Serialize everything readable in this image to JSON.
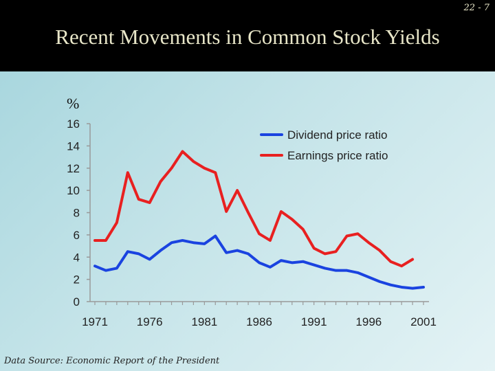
{
  "slide": {
    "page_number": "22 - 7",
    "title": "Recent Movements in Common Stock Yields",
    "source": "Data Source: Economic Report of the President"
  },
  "chart_data": {
    "type": "line",
    "title": "Recent Movements in Common Stock Yields",
    "ylabel": "%",
    "xlabel": "",
    "x": [
      1971,
      1972,
      1973,
      1974,
      1975,
      1976,
      1977,
      1978,
      1979,
      1980,
      1981,
      1982,
      1983,
      1984,
      1985,
      1986,
      1987,
      1988,
      1989,
      1990,
      1991,
      1992,
      1993,
      1994,
      1995,
      1996,
      1997,
      1998,
      1999,
      2000,
      2001
    ],
    "x_ticks": [
      "1971",
      "1976",
      "1981",
      "1986",
      "1991",
      "1996",
      "2001"
    ],
    "ylim": [
      0,
      16
    ],
    "y_ticks": [
      "0",
      "2",
      "4",
      "6",
      "8",
      "10",
      "12",
      "14",
      "16"
    ],
    "legend_position": "top-right",
    "grid": false,
    "series": [
      {
        "name": "Dividend price ratio",
        "color": "#1a43e0",
        "values": [
          3.2,
          2.8,
          3.0,
          4.5,
          4.3,
          3.8,
          4.6,
          5.3,
          5.5,
          5.3,
          5.2,
          5.9,
          4.4,
          4.6,
          4.3,
          3.5,
          3.1,
          3.7,
          3.5,
          3.6,
          3.3,
          3.0,
          2.8,
          2.8,
          2.6,
          2.2,
          1.8,
          1.5,
          1.3,
          1.2,
          1.3
        ]
      },
      {
        "name": "Earnings price ratio",
        "color": "#e82020",
        "values": [
          5.5,
          5.5,
          7.1,
          11.6,
          9.2,
          8.9,
          10.8,
          12.0,
          13.5,
          12.6,
          12.0,
          11.6,
          8.1,
          10.0,
          8.0,
          6.1,
          5.5,
          8.1,
          7.4,
          6.5,
          4.8,
          4.3,
          4.5,
          5.9,
          6.1,
          5.3,
          4.6,
          3.6,
          3.2,
          3.8,
          null
        ]
      }
    ]
  }
}
